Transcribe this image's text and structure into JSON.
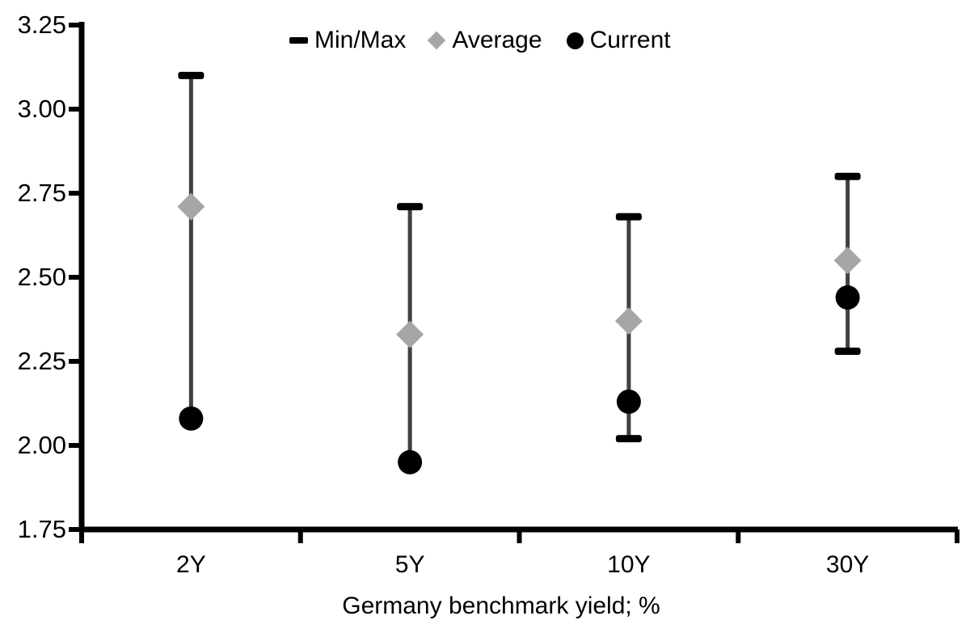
{
  "chart_data": {
    "type": "scatter",
    "chart_kind": "min-max-average-current-range",
    "title": "",
    "xlabel": "Germany benchmark yield; %",
    "ylabel": "",
    "categories": [
      "2Y",
      "5Y",
      "10Y",
      "30Y"
    ],
    "series": [
      {
        "name": "Min/Max",
        "min": [
          2.08,
          1.95,
          2.02,
          2.28
        ],
        "max": [
          3.1,
          2.71,
          2.68,
          2.8
        ]
      },
      {
        "name": "Average",
        "values": [
          2.71,
          2.33,
          2.37,
          2.55
        ]
      },
      {
        "name": "Current",
        "values": [
          2.08,
          1.95,
          2.13,
          2.44
        ]
      }
    ],
    "ylim": [
      1.75,
      3.25
    ],
    "ytick_step": 0.25,
    "ytick_labels": [
      "3.25",
      "3.00",
      "2.75",
      "2.50",
      "2.25",
      "2.00",
      "1.75"
    ],
    "grid": false,
    "legend": {
      "position": "top-center",
      "entries": [
        "Min/Max",
        "Average",
        "Current"
      ]
    },
    "colors": {
      "min_max": "#000000",
      "error_line": "#404040",
      "average": "#a6a6a6",
      "current": "#000000",
      "axis": "#000000",
      "text": "#000000",
      "background": "#ffffff"
    },
    "notes": "Min caps for 2Y and 5Y coincide with Current markers (hidden behind dots)"
  }
}
